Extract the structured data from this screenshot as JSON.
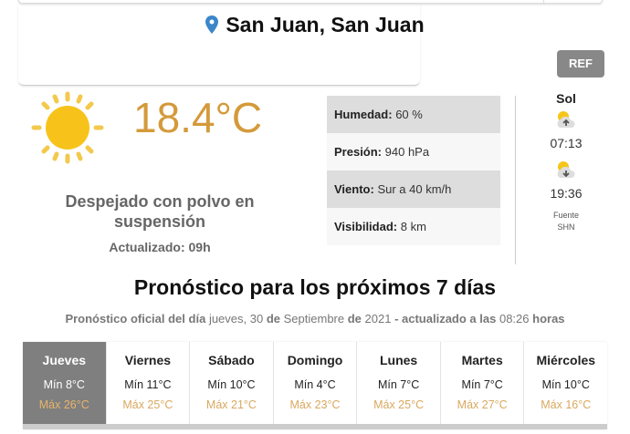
{
  "location": {
    "title": "San Juan, San Juan",
    "icon": "map-pin-icon"
  },
  "refresh_label": "REF",
  "current": {
    "icon": "sun-icon",
    "temperature": "18.4°C",
    "description": "Despejado con polvo en suspensión",
    "updated": "Actualizado: 09h"
  },
  "stats": [
    {
      "label": "Humedad:",
      "value": "60 %"
    },
    {
      "label": "Presión:",
      "value": "940 hPa"
    },
    {
      "label": "Viento:",
      "value": "Sur a 40 km/h"
    },
    {
      "label": "Visibilidad:",
      "value": "8 km"
    }
  ],
  "sun": {
    "heading": "Sol",
    "sunrise": "07:13",
    "sunset": "19:36",
    "source_label": "Fuente",
    "source": "SHN"
  },
  "forecast": {
    "heading": "Pronóstico para los próximos 7 días",
    "sub": {
      "p1": "Pronóstico oficial del día",
      "day": "jueves, 30",
      "p2": "de",
      "month": "Septiembre",
      "p3": "de",
      "year": "2021",
      "p4": "- actualizado a las",
      "time": "08:26",
      "p5": "horas"
    },
    "days": [
      {
        "name": "Jueves",
        "min": "Mín 8°C",
        "max": "Máx 26°C",
        "selected": true
      },
      {
        "name": "Viernes",
        "min": "Mín 11°C",
        "max": "Máx 25°C"
      },
      {
        "name": "Sábado",
        "min": "Mín 10°C",
        "max": "Máx 21°C"
      },
      {
        "name": "Domingo",
        "min": "Mín 4°C",
        "max": "Máx 23°C"
      },
      {
        "name": "Lunes",
        "min": "Mín 7°C",
        "max": "Máx 25°C"
      },
      {
        "name": "Martes",
        "min": "Mín 7°C",
        "max": "Máx 27°C"
      },
      {
        "name": "Miércoles",
        "min": "Mín 10°C",
        "max": "Máx 16°C"
      }
    ]
  },
  "colors": {
    "temperature": "#d49a3a",
    "max": "#d9a85f",
    "selected_day": "#7f7f7f",
    "pin": "#3a86c8"
  }
}
